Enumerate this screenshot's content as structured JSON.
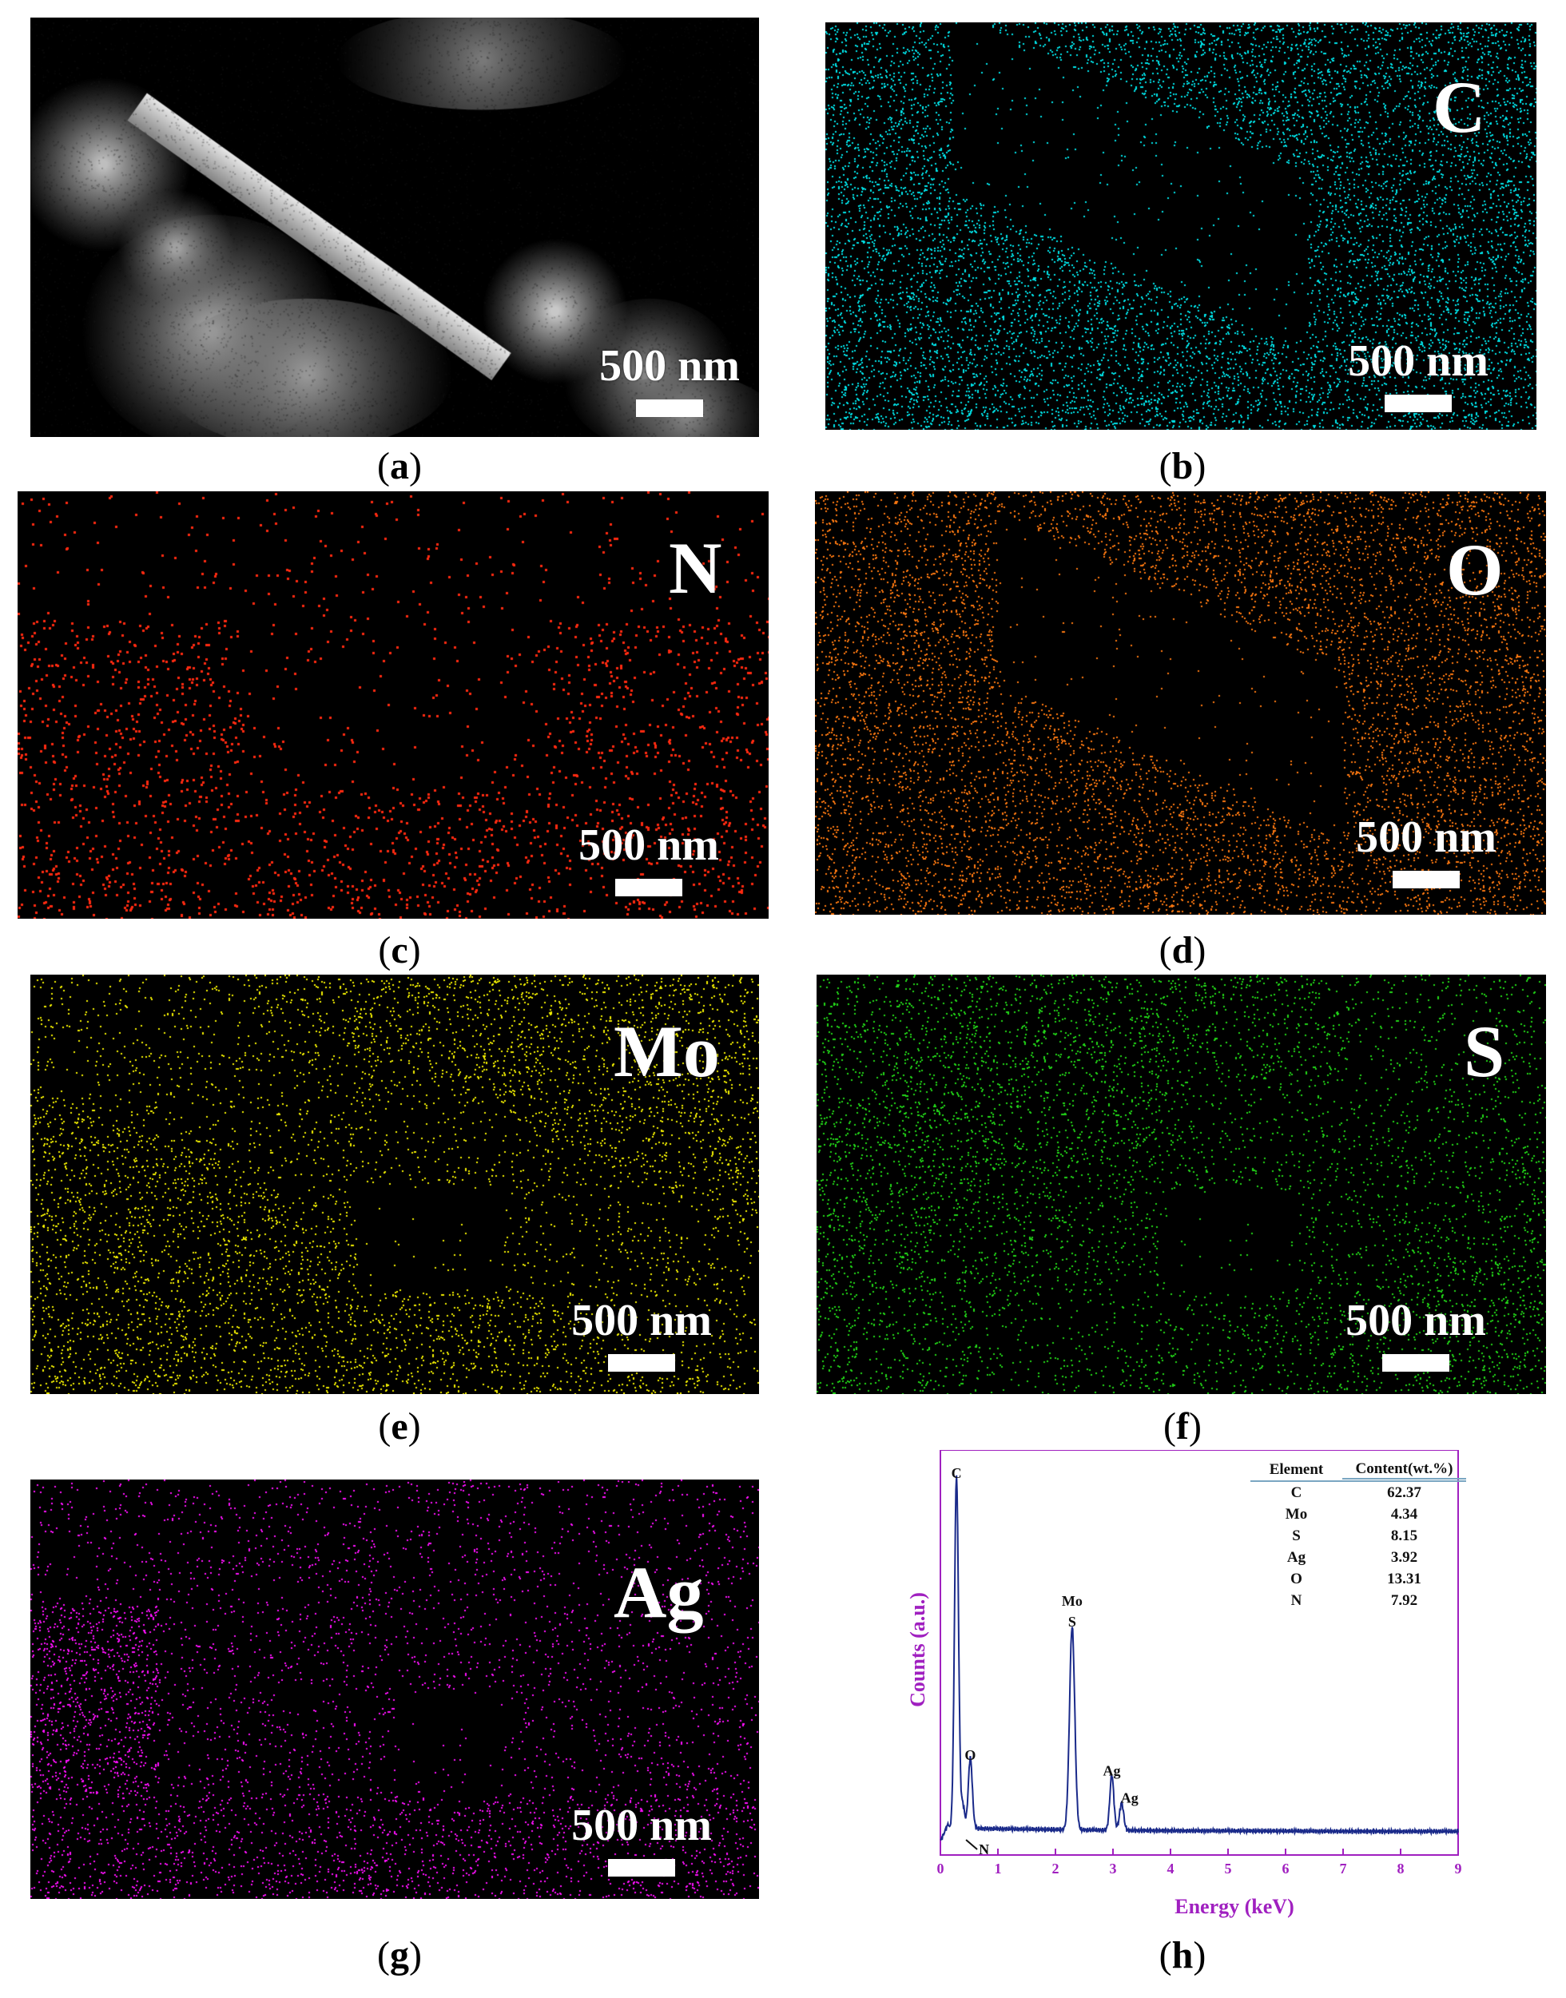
{
  "panels": [
    {
      "id": "a",
      "element": "",
      "caption": "a",
      "scale_text": "500 nm",
      "color": "#b0b0b0"
    },
    {
      "id": "b",
      "element": "C",
      "caption": "b",
      "scale_text": "500 nm",
      "color": "#00e4ea"
    },
    {
      "id": "c",
      "element": "N",
      "caption": "c",
      "scale_text": "500 nm",
      "color": "#ff2a10"
    },
    {
      "id": "d",
      "element": "O",
      "caption": "d",
      "scale_text": "500 nm",
      "color": "#ff7a10"
    },
    {
      "id": "e",
      "element": "Mo",
      "caption": "e",
      "scale_text": "500 nm",
      "color": "#f4f000"
    },
    {
      "id": "f",
      "element": "S",
      "caption": "f",
      "scale_text": "500 nm",
      "color": "#22d818"
    },
    {
      "id": "g",
      "element": "Ag",
      "caption": "g",
      "scale_text": "500 nm",
      "color": "#ff10ff"
    }
  ],
  "eds_caption": "h",
  "chart_data": {
    "type": "line",
    "xlabel": "Energy (keV)",
    "ylabel": "Counts (a.u.)",
    "xlim": [
      0,
      9
    ],
    "x_ticks": [
      "0",
      "1",
      "2",
      "3",
      "4",
      "5",
      "6",
      "7",
      "8",
      "9"
    ],
    "axis_color": "#a020c0",
    "line_color": "#1a2a8a",
    "peaks": [
      {
        "label": "C",
        "x": 0.28,
        "y": 0.9
      },
      {
        "label": "N",
        "x": 0.39,
        "y": 0.06
      },
      {
        "label": "O",
        "x": 0.52,
        "y": 0.18
      },
      {
        "label": "Mo\nS",
        "x": 2.29,
        "y": 0.52
      },
      {
        "label": "Ag",
        "x": 2.98,
        "y": 0.14
      },
      {
        "label": "Ag",
        "x": 3.15,
        "y": 0.07
      }
    ],
    "table": {
      "headers": [
        "Element",
        "Content(wt.%)"
      ],
      "rows": [
        [
          "C",
          "62.37"
        ],
        [
          "Mo",
          "4.34"
        ],
        [
          "S",
          "8.15"
        ],
        [
          "Ag",
          "3.92"
        ],
        [
          "O",
          "13.31"
        ],
        [
          "N",
          "7.92"
        ]
      ]
    }
  }
}
